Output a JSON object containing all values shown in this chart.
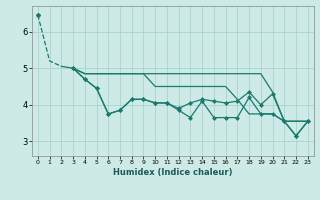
{
  "xlabel": "Humidex (Indice chaleur)",
  "bg_color": "#ceeae6",
  "line_color": "#1a7a6e",
  "grid_color": "#a8d4d0",
  "xlim": [
    -0.5,
    23.5
  ],
  "ylim": [
    2.6,
    6.7
  ],
  "xtick_labels": [
    "0",
    "1",
    "2",
    "3",
    "4",
    "5",
    "6",
    "7",
    "8",
    "9",
    "10",
    "11",
    "12",
    "13",
    "14",
    "15",
    "16",
    "17",
    "18",
    "19",
    "20",
    "21",
    "22",
    "23"
  ],
  "yticks": [
    3,
    4,
    5,
    6
  ],
  "series": [
    {
      "x": [
        0,
        1,
        2,
        3,
        4,
        5,
        6,
        7,
        8,
        9,
        10,
        11,
        12,
        13,
        14,
        15,
        16,
        17,
        18,
        19,
        20,
        21,
        22,
        23
      ],
      "y": [
        6.45,
        5.2,
        5.05,
        5.0,
        4.85,
        4.85,
        4.85,
        4.85,
        4.85,
        4.85,
        4.85,
        4.85,
        4.85,
        4.85,
        4.85,
        4.85,
        4.85,
        4.85,
        4.85,
        4.85,
        4.35,
        3.55,
        3.55,
        3.55
      ],
      "dashed_to": 2,
      "markers": false
    },
    {
      "x": [
        3,
        4,
        5,
        6,
        7,
        8,
        9,
        10,
        11,
        12,
        13,
        14,
        15,
        16,
        17,
        18,
        19,
        20,
        21,
        22,
        23
      ],
      "y": [
        5.0,
        4.7,
        4.45,
        3.75,
        3.85,
        4.15,
        4.15,
        4.05,
        4.05,
        3.9,
        4.05,
        4.15,
        4.1,
        4.05,
        4.1,
        4.35,
        4.0,
        4.3,
        3.55,
        3.15,
        3.55
      ],
      "markers": true
    },
    {
      "x": [
        3,
        4,
        5,
        6,
        7,
        8,
        9,
        10,
        11,
        12,
        13,
        14,
        15,
        16,
        17,
        18,
        19,
        20,
        21,
        22,
        23
      ],
      "y": [
        5.0,
        4.7,
        4.45,
        3.75,
        3.85,
        4.15,
        4.15,
        4.05,
        4.05,
        3.85,
        3.65,
        4.1,
        3.65,
        3.65,
        3.65,
        4.2,
        3.75,
        3.75,
        3.55,
        3.15,
        3.55
      ],
      "markers": true
    },
    {
      "x": [
        3,
        4,
        5,
        6,
        7,
        8,
        9,
        10,
        11,
        12,
        13,
        14,
        15,
        16,
        17,
        18,
        19,
        20,
        21,
        22,
        23
      ],
      "y": [
        5.0,
        4.85,
        4.85,
        4.85,
        4.85,
        4.85,
        4.85,
        4.5,
        4.5,
        4.5,
        4.5,
        4.5,
        4.5,
        4.5,
        4.15,
        3.75,
        3.75,
        3.75,
        3.55,
        3.55,
        3.55
      ],
      "markers": false
    }
  ]
}
